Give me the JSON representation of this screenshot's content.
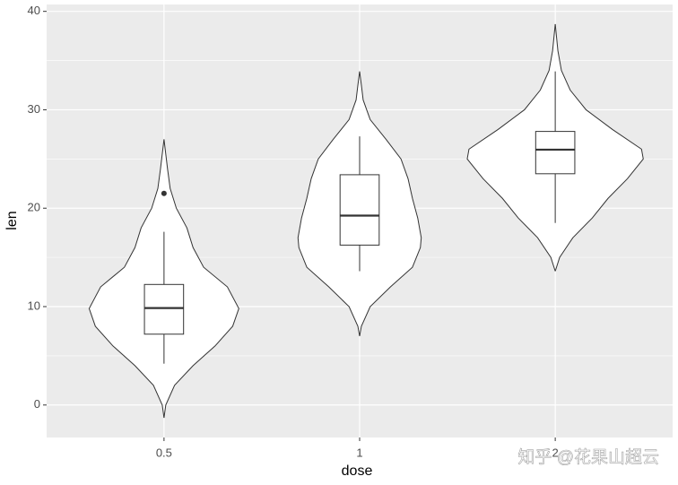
{
  "chart_data": {
    "type": "violin",
    "x_label": "dose",
    "y_label": "len",
    "categories": [
      "0.5",
      "1",
      "2"
    ],
    "ylim": [
      -3.3,
      40.7
    ],
    "yticks": [
      0,
      10,
      20,
      30,
      40
    ],
    "minor_yticks": [
      5,
      15,
      25,
      35
    ],
    "grid": true,
    "groups": [
      {
        "violin": {
          "y": [
            -1.3,
            0,
            2,
            4,
            6,
            8,
            9.8,
            12,
            14,
            16,
            18,
            20,
            22,
            24,
            27
          ],
          "width": [
            0,
            0.02,
            0.12,
            0.33,
            0.58,
            0.78,
            0.85,
            0.72,
            0.45,
            0.33,
            0.26,
            0.14,
            0.07,
            0.04,
            0
          ]
        },
        "box": {
          "min": 4.2,
          "q1": 7.2,
          "median": 9.85,
          "q3": 12.25,
          "max": 17.6
        },
        "outliers": [
          21.5
        ]
      },
      {
        "violin": {
          "y": [
            7,
            8,
            10,
            12,
            14,
            16,
            17,
            19,
            21,
            23,
            25,
            27,
            29,
            31,
            32.5,
            33.9
          ],
          "width": [
            0,
            0.02,
            0.12,
            0.35,
            0.6,
            0.69,
            0.7,
            0.66,
            0.6,
            0.55,
            0.47,
            0.3,
            0.12,
            0.04,
            0.02,
            0
          ]
        },
        "box": {
          "min": 13.6,
          "q1": 16.25,
          "median": 19.25,
          "q3": 23.4,
          "max": 27.3
        },
        "outliers": []
      },
      {
        "violin": {
          "y": [
            13.6,
            15,
            17,
            19,
            21,
            23,
            25,
            26,
            28,
            30,
            32,
            34,
            36,
            38.7
          ],
          "width": [
            0,
            0.05,
            0.2,
            0.42,
            0.6,
            0.82,
            1.0,
            0.98,
            0.65,
            0.35,
            0.17,
            0.07,
            0.03,
            0
          ]
        },
        "box": {
          "min": 18.5,
          "q1": 23.5,
          "median": 25.95,
          "q3": 27.8,
          "max": 33.9
        },
        "outliers": []
      }
    ],
    "watermark": "知乎 @花果山超云"
  }
}
